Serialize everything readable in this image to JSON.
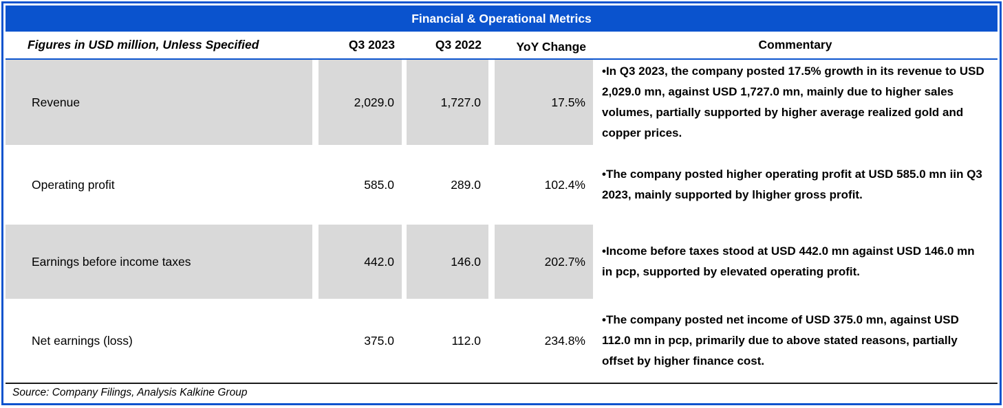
{
  "colors": {
    "accent_blue": "#0a53ce",
    "cell_gray": "#d9d9d9",
    "separator_black": "#1a1a1a"
  },
  "title": "Financial & Operational Metrics",
  "header": {
    "label": "Figures in USD million, Unless Specified",
    "col_q3_2023": "Q3 2023",
    "col_q3_2022": "Q3 2022",
    "col_yoy": "YoY Change",
    "col_commentary": "Commentary"
  },
  "rows": [
    {
      "metric": "Revenue",
      "q3_2023": "2,029.0",
      "q3_2022": "1,727.0",
      "yoy": "17.5%",
      "shaded": true,
      "commentary": "•In Q3 2023, the company posted 17.5% growth in its revenue to USD 2,029.0 mn, against USD 1,727.0 mn, mainly due to higher sales volumes, partially supported by higher average realized gold and copper prices."
    },
    {
      "metric": "Operating profit",
      "q3_2023": "585.0",
      "q3_2022": "289.0",
      "yoy": "102.4%",
      "shaded": false,
      "commentary": "•The company posted higher operating profit at USD 585.0 mn iin Q3 2023, mainly supported by lhigher gross profit."
    },
    {
      "metric": "Earnings before income taxes",
      "q3_2023": "442.0",
      "q3_2022": "146.0",
      "yoy": "202.7%",
      "shaded": true,
      "commentary": "•Income before taxes stood at USD 442.0 mn against USD 146.0 mn in pcp, supported by elevated operating profit."
    },
    {
      "metric": "Net earnings (loss)",
      "q3_2023": "375.0",
      "q3_2022": "112.0",
      "yoy": "234.8%",
      "shaded": false,
      "commentary": "•The company posted net income of USD 375.0 mn, against USD 112.0 mn in pcp, primarily due to above stated reasons, partially offset by higher finance cost."
    }
  ],
  "source": "Source: Company Filings, Analysis Kalkine Group",
  "chart_data": {
    "type": "table",
    "title": "Financial & Operational Metrics",
    "columns": [
      "Figures in USD million, Unless Specified",
      "Q3 2023",
      "Q3 2022",
      "YoY Change"
    ],
    "rows": [
      [
        "Revenue",
        2029.0,
        1727.0,
        "17.5%"
      ],
      [
        "Operating profit",
        585.0,
        289.0,
        "102.4%"
      ],
      [
        "Earnings before income taxes",
        442.0,
        146.0,
        "202.7%"
      ],
      [
        "Net earnings (loss)",
        375.0,
        112.0,
        "234.8%"
      ]
    ]
  }
}
